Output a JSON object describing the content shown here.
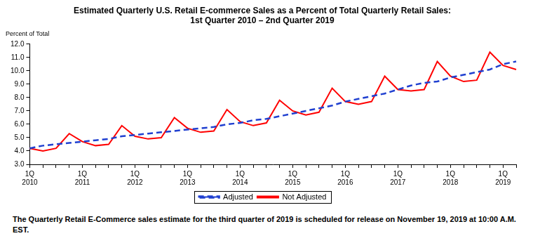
{
  "chart_data": {
    "type": "line",
    "title": [
      "Estimated Quarterly U.S. Retail E-commerce Sales as a Percent of Total Quarterly Retail Sales:",
      "1st Quarter 2010 – 2nd Quarter 2019"
    ],
    "y_label": "Percent of Total",
    "note": "The Quarterly Retail E-Commerce sales estimate for the third quarter of 2019 is scheduled for release on November 19, 2019 at 10:00 A.M. EST.",
    "categories": [
      "1Q\n2010",
      null,
      null,
      null,
      "1Q\n2011",
      null,
      null,
      null,
      "1Q\n2012",
      null,
      null,
      null,
      "1Q\n2013",
      null,
      null,
      null,
      "1Q\n2014",
      null,
      null,
      null,
      "1Q\n2015",
      null,
      null,
      null,
      "1Q\n2016",
      null,
      null,
      null,
      "1Q\n2017",
      null,
      null,
      null,
      "1Q\n2018",
      null,
      null,
      null,
      "1Q\n2019",
      null
    ],
    "series": [
      {
        "name": "Not Adjusted",
        "color": "#ff0000",
        "line_style": "solid",
        "marker": "none",
        "values": [
          4.2,
          4.0,
          4.2,
          5.3,
          4.7,
          4.4,
          4.5,
          5.9,
          5.1,
          4.9,
          5.0,
          6.5,
          5.7,
          5.4,
          5.5,
          7.1,
          6.2,
          5.9,
          6.1,
          7.8,
          7.0,
          6.7,
          6.9,
          8.7,
          7.7,
          7.5,
          7.7,
          9.6,
          8.6,
          8.5,
          8.6,
          10.7,
          9.6,
          9.2,
          9.3,
          11.4,
          10.4,
          10.1
        ]
      },
      {
        "name": "Adjusted",
        "color": "#2040d0",
        "line_style": "dashed",
        "marker": "none",
        "values": [
          4.2,
          4.4,
          4.5,
          4.6,
          4.7,
          4.8,
          4.9,
          5.1,
          5.2,
          5.3,
          5.4,
          5.5,
          5.6,
          5.7,
          5.8,
          6.0,
          6.1,
          6.3,
          6.4,
          6.6,
          6.8,
          7.0,
          7.2,
          7.4,
          7.7,
          7.9,
          8.1,
          8.3,
          8.6,
          8.9,
          9.1,
          9.2,
          9.5,
          9.7,
          9.9,
          10.1,
          10.5,
          10.7
        ]
      }
    ],
    "ylim": [
      3,
      12
    ],
    "yticks": [
      {
        "value": 3,
        "label": "3.0"
      },
      {
        "value": 4,
        "label": "4.0"
      },
      {
        "value": 5,
        "label": "5.0"
      },
      {
        "value": 6,
        "label": "6.0"
      },
      {
        "value": 7,
        "label": "7.0"
      },
      {
        "value": 8,
        "label": "8.0"
      },
      {
        "value": 9,
        "label": "9.0"
      },
      {
        "value": 10,
        "label": "10.0"
      },
      {
        "value": 11,
        "label": "11.0"
      },
      {
        "value": 12,
        "label": "12.0"
      }
    ],
    "grid": false,
    "legend": "bottom"
  }
}
